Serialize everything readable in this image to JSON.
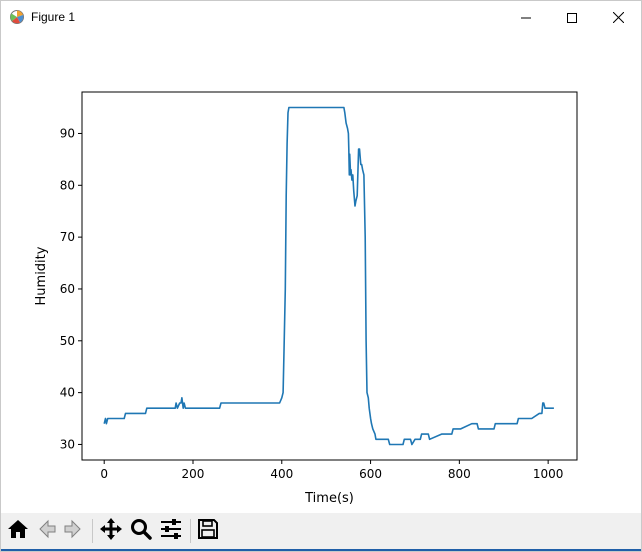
{
  "window": {
    "title": "Figure 1",
    "controls": {
      "minimize": "minimize-icon",
      "maximize": "maximize-icon",
      "close": "close-icon"
    }
  },
  "toolbar": {
    "buttons": [
      "home-icon",
      "back-icon",
      "forward-icon",
      "pan-icon",
      "zoom-icon",
      "configure-subplots-icon",
      "save-icon"
    ]
  },
  "chart_data": {
    "type": "line",
    "title": "",
    "xlabel": "Time(s)",
    "ylabel": "Humidity",
    "xlim": [
      -50,
      1065
    ],
    "ylim": [
      27,
      98
    ],
    "xticks": [
      0,
      200,
      400,
      600,
      800,
      1000
    ],
    "yticks": [
      30,
      40,
      50,
      60,
      70,
      80,
      90
    ],
    "grid": false,
    "color": "#1f77b4",
    "series": [
      {
        "x": [
          0,
          3,
          5,
          8,
          10,
          45,
          48,
          93,
          96,
          155,
          160,
          162,
          165,
          170,
          173,
          175,
          178,
          180,
          183,
          260,
          263,
          395,
          400,
          403,
          405,
          408,
          410,
          412,
          414,
          416,
          418,
          420,
          540,
          542,
          545,
          548,
          550,
          551,
          552,
          553,
          555,
          556,
          558,
          560,
          562,
          565,
          567,
          570,
          573,
          575,
          578,
          580,
          582,
          585,
          588,
          590,
          592,
          595,
          597,
          600,
          602,
          605,
          610,
          612,
          625,
          628,
          640,
          643,
          655,
          657,
          660,
          673,
          676,
          690,
          693,
          700,
          703,
          712,
          715,
          730,
          733,
          760,
          763,
          783,
          786,
          800,
          803,
          828,
          831,
          840,
          843,
          878,
          881,
          930,
          933,
          960,
          963,
          980,
          983,
          986,
          988,
          990,
          993,
          1000,
          1013
        ],
        "y": [
          34,
          35,
          34,
          35,
          35,
          35,
          36,
          36,
          37,
          37,
          37,
          38,
          37,
          38,
          38,
          39,
          37,
          38,
          37,
          37,
          38,
          38,
          39,
          40,
          48,
          60,
          78,
          88,
          94,
          95,
          95,
          95,
          95,
          94,
          92,
          91,
          90,
          87,
          82,
          86,
          82,
          83,
          81,
          82,
          79,
          76,
          77,
          78,
          87,
          87,
          84,
          84,
          83,
          82,
          70,
          50,
          40,
          39,
          37,
          35,
          34,
          33,
          32,
          31,
          31,
          31,
          31,
          30,
          30,
          30,
          30,
          30,
          31,
          31,
          30,
          31,
          31,
          31,
          32,
          32,
          31,
          32,
          32,
          32,
          33,
          33,
          33,
          34,
          34,
          34,
          33,
          33,
          34,
          34,
          35,
          35,
          35,
          36,
          36,
          36,
          38,
          38,
          37,
          37,
          37
        ]
      }
    ]
  }
}
